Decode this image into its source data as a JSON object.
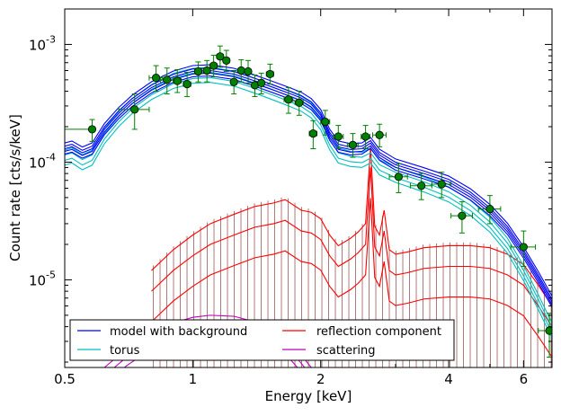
{
  "chart_data": {
    "type": "line",
    "xlabel": "Energy [keV]",
    "ylabel": "Count rate [cts/s/keV]",
    "xscale": "log",
    "yscale": "log",
    "xlim": [
      0.5,
      7.0
    ],
    "ylim": [
      1.8e-06,
      0.002
    ],
    "x_ticks": [
      {
        "value": 0.5,
        "label": "0.5"
      },
      {
        "value": 1,
        "label": "1"
      },
      {
        "value": 2,
        "label": "2"
      },
      {
        "value": 4,
        "label": "4"
      },
      {
        "value": 6,
        "label": "6"
      }
    ],
    "y_ticks": [
      {
        "value": 1e-05,
        "base": "10",
        "exp": "-5"
      },
      {
        "value": 0.0001,
        "base": "10",
        "exp": "-4"
      },
      {
        "value": 0.001,
        "base": "10",
        "exp": "-3"
      }
    ],
    "legend": {
      "placement": "lower-left",
      "entries": [
        {
          "label": "model with background",
          "color": "#0000ff"
        },
        {
          "label": "reflection component",
          "color": "#ff0000"
        },
        {
          "label": "torus",
          "color": "#00bfbf"
        },
        {
          "label": "scattering",
          "color": "#bf00bf"
        }
      ]
    },
    "series": [
      {
        "role": "model with background",
        "color": "#0000ff",
        "x": [
          0.5,
          0.52,
          0.55,
          0.58,
          0.62,
          0.67,
          0.72,
          0.8,
          0.9,
          1.0,
          1.1,
          1.25,
          1.4,
          1.55,
          1.7,
          1.8,
          1.9,
          2.0,
          2.1,
          2.2,
          2.35,
          2.5,
          2.62,
          2.75,
          3.0,
          3.5,
          4.0,
          4.5,
          5.0,
          5.5,
          6.0,
          6.5,
          7.0
        ],
        "y": [
          0.00013,
          0.000135,
          0.00012,
          0.00013,
          0.00019,
          0.00026,
          0.00033,
          0.00043,
          0.00053,
          0.00059,
          0.0006,
          0.00056,
          0.00049,
          0.00043,
          0.00038,
          0.00035,
          0.00031,
          0.00025,
          0.00017,
          0.000135,
          0.000128,
          0.00013,
          0.000145,
          0.000115,
          9.5e-05,
          8e-05,
          6.8e-05,
          5.3e-05,
          3.9e-05,
          2.7e-05,
          1.7e-05,
          1.05e-05,
          6.5e-06
        ]
      },
      {
        "role": "torus",
        "color": "#00bfbf",
        "x": [
          0.5,
          0.52,
          0.55,
          0.58,
          0.62,
          0.67,
          0.72,
          0.8,
          0.9,
          1.0,
          1.1,
          1.25,
          1.4,
          1.55,
          1.7,
          1.8,
          1.9,
          2.0,
          2.1,
          2.2,
          2.35,
          2.5,
          2.62,
          2.75,
          3.0,
          3.5,
          4.0,
          4.5,
          5.0,
          5.5,
          6.0,
          6.5,
          7.0
        ],
        "y": [
          0.000115,
          0.00012,
          0.000105,
          0.000115,
          0.000175,
          0.000245,
          0.000315,
          0.000415,
          0.000515,
          0.00057,
          0.00058,
          0.00054,
          0.00047,
          0.00041,
          0.00036,
          0.00033,
          0.00029,
          0.00023,
          0.000155,
          0.00012,
          0.000112,
          0.00011,
          0.00012,
          9.5e-05,
          8.2e-05,
          6.8e-05,
          5.6e-05,
          4.3e-05,
          3.1e-05,
          2.05e-05,
          1.2e-05,
          6.8e-06,
          3.9e-06
        ]
      },
      {
        "role": "reflection component",
        "color": "#ff0000",
        "x": [
          0.8,
          0.9,
          1.0,
          1.1,
          1.25,
          1.4,
          1.55,
          1.65,
          1.8,
          1.9,
          2.0,
          2.1,
          2.2,
          2.35,
          2.45,
          2.55,
          2.62,
          2.68,
          2.75,
          2.82,
          2.9,
          3.0,
          3.2,
          3.5,
          4.0,
          4.5,
          5.0,
          5.5,
          6.0,
          6.5,
          7.0
        ],
        "y": [
          8e-06,
          1.2e-05,
          1.6e-05,
          2e-05,
          2.4e-05,
          2.8e-05,
          3e-05,
          3.2e-05,
          2.6e-05,
          2.5e-05,
          2.2e-05,
          1.6e-05,
          1.3e-05,
          1.5e-05,
          1.7e-05,
          2e-05,
          9e-05,
          1.9e-05,
          1.6e-05,
          2.6e-05,
          1.2e-05,
          1.1e-05,
          1.15e-05,
          1.25e-05,
          1.3e-05,
          1.3e-05,
          1.25e-05,
          1.1e-05,
          9e-06,
          6e-06,
          4e-06
        ]
      },
      {
        "role": "scattering",
        "color": "#bf00bf",
        "x": [
          0.62,
          0.7,
          0.8,
          0.9,
          1.0,
          1.1,
          1.25,
          1.4,
          1.55,
          1.7,
          1.8,
          1.9
        ],
        "y": [
          1.8e-06,
          2.6e-06,
          3.6e-06,
          4.3e-06,
          4.8e-06,
          5e-06,
          4.9e-06,
          4.4e-06,
          3.8e-06,
          2.9e-06,
          2.3e-06,
          1.8e-06
        ]
      }
    ],
    "data_points": [
      {
        "x": 0.58,
        "y": 0.00019,
        "xerr": [
          0.08,
          0.0
        ],
        "yerr": [
          4e-05,
          4e-05
        ]
      },
      {
        "x": 0.73,
        "y": 0.00028,
        "xerr": [
          0.06,
          0.06
        ],
        "yerr": [
          9e-05,
          0.0001
        ]
      },
      {
        "x": 0.82,
        "y": 0.00052,
        "xerr": [
          0.03,
          0.03
        ],
        "yerr": [
          0.00012,
          0.00014
        ]
      },
      {
        "x": 0.87,
        "y": 0.0005,
        "xerr": [
          0.03,
          0.03
        ],
        "yerr": [
          0.00012,
          0.00013
        ]
      },
      {
        "x": 0.92,
        "y": 0.00049,
        "xerr": [
          0.02,
          0.02
        ],
        "yerr": [
          0.0001,
          0.00012
        ]
      },
      {
        "x": 0.97,
        "y": 0.00046,
        "xerr": [
          0.02,
          0.02
        ],
        "yerr": [
          0.0001,
          0.00012
        ]
      },
      {
        "x": 1.03,
        "y": 0.00059,
        "xerr": [
          0.02,
          0.02
        ],
        "yerr": [
          0.00011,
          0.00012
        ]
      },
      {
        "x": 1.08,
        "y": 0.0006,
        "xerr": [
          0.02,
          0.02
        ],
        "yerr": [
          0.00012,
          0.00013
        ]
      },
      {
        "x": 1.12,
        "y": 0.00066,
        "xerr": [
          0.02,
          0.02
        ],
        "yerr": [
          0.00013,
          0.00015
        ]
      },
      {
        "x": 1.16,
        "y": 0.00079,
        "xerr": [
          0.02,
          0.02
        ],
        "yerr": [
          0.00015,
          0.00018
        ]
      },
      {
        "x": 1.2,
        "y": 0.00073,
        "xerr": [
          0.02,
          0.02
        ],
        "yerr": [
          0.00014,
          0.00016
        ]
      },
      {
        "x": 1.25,
        "y": 0.00048,
        "xerr": [
          0.02,
          0.02
        ],
        "yerr": [
          0.0001,
          0.00012
        ]
      },
      {
        "x": 1.3,
        "y": 0.0006,
        "xerr": [
          0.02,
          0.02
        ],
        "yerr": [
          0.00012,
          0.00014
        ]
      },
      {
        "x": 1.35,
        "y": 0.00059,
        "xerr": [
          0.02,
          0.02
        ],
        "yerr": [
          0.00012,
          0.00014
        ]
      },
      {
        "x": 1.4,
        "y": 0.00045,
        "xerr": [
          0.02,
          0.02
        ],
        "yerr": [
          9e-05,
          0.0001
        ]
      },
      {
        "x": 1.45,
        "y": 0.00047,
        "xerr": [
          0.02,
          0.02
        ],
        "yerr": [
          9e-05,
          0.0001
        ]
      },
      {
        "x": 1.52,
        "y": 0.00056,
        "xerr": [
          0.03,
          0.03
        ],
        "yerr": [
          0.0001,
          0.00012
        ]
      },
      {
        "x": 1.68,
        "y": 0.00034,
        "xerr": [
          0.04,
          0.04
        ],
        "yerr": [
          8e-05,
          9e-05
        ]
      },
      {
        "x": 1.78,
        "y": 0.00032,
        "xerr": [
          0.04,
          0.04
        ],
        "yerr": [
          7e-05,
          8e-05
        ]
      },
      {
        "x": 1.92,
        "y": 0.000175,
        "xerr": [
          0.04,
          0.04
        ],
        "yerr": [
          4.5e-05,
          5e-05
        ]
      },
      {
        "x": 2.05,
        "y": 0.00022,
        "xerr": [
          0.05,
          0.05
        ],
        "yerr": [
          5e-05,
          5.5e-05
        ]
      },
      {
        "x": 2.2,
        "y": 0.000165,
        "xerr": [
          0.06,
          0.06
        ],
        "yerr": [
          3.5e-05,
          4e-05
        ]
      },
      {
        "x": 2.38,
        "y": 0.00014,
        "xerr": [
          0.07,
          0.07
        ],
        "yerr": [
          3e-05,
          3.5e-05
        ]
      },
      {
        "x": 2.55,
        "y": 0.000165,
        "xerr": [
          0.06,
          0.06
        ],
        "yerr": [
          3.5e-05,
          4e-05
        ]
      },
      {
        "x": 2.75,
        "y": 0.00017,
        "xerr": [
          0.1,
          0.1
        ],
        "yerr": [
          3.5e-05,
          4e-05
        ]
      },
      {
        "x": 3.05,
        "y": 7.5e-05,
        "xerr": [
          0.15,
          0.15
        ],
        "yerr": [
          2e-05,
          2.2e-05
        ]
      },
      {
        "x": 3.45,
        "y": 6.3e-05,
        "xerr": [
          0.2,
          0.2
        ],
        "yerr": [
          1.5e-05,
          1.7e-05
        ]
      },
      {
        "x": 3.85,
        "y": 6.5e-05,
        "xerr": [
          0.2,
          0.2
        ],
        "yerr": [
          1.5e-05,
          1.7e-05
        ]
      },
      {
        "x": 4.3,
        "y": 3.5e-05,
        "xerr": [
          0.25,
          0.25
        ],
        "yerr": [
          1e-05,
          1.1e-05
        ]
      },
      {
        "x": 5.0,
        "y": 4e-05,
        "xerr": [
          0.3,
          0.3
        ],
        "yerr": [
          1e-05,
          1.2e-05
        ]
      },
      {
        "x": 6.0,
        "y": 1.9e-05,
        "xerr": [
          0.4,
          0.4
        ],
        "yerr": [
          6e-06,
          7e-06
        ]
      },
      {
        "x": 6.9,
        "y": 3.7e-06,
        "xerr": [
          0.4,
          0.1
        ],
        "yerr": [
          1.5e-06,
          1.5e-06
        ]
      }
    ],
    "colors": {
      "data_points": "#008000",
      "hatch": "#8b3a3a",
      "axes": "#000000"
    }
  }
}
